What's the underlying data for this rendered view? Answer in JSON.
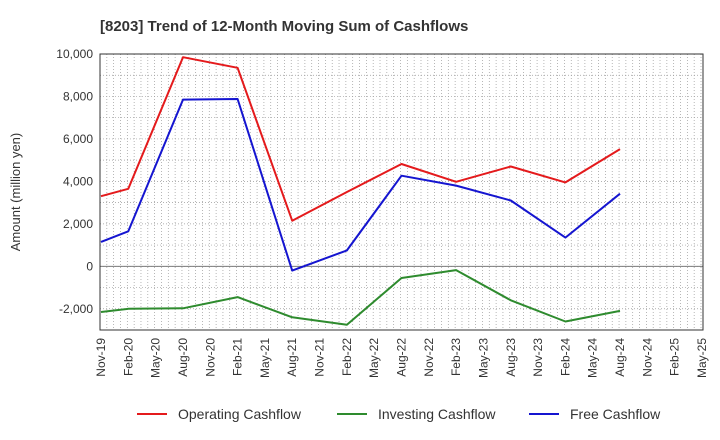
{
  "chart_data": {
    "type": "line",
    "title": "[8203]  Trend of 12-Month Moving Sum of Cashflows",
    "xlabel": "",
    "ylabel": "Amount (million yen)",
    "ylim": [
      -3000,
      10000
    ],
    "yticks": [
      -2000,
      0,
      2000,
      4000,
      6000,
      8000,
      10000
    ],
    "ytick_labels": [
      "-2,000",
      "0",
      "2,000",
      "4,000",
      "6,000",
      "8,000",
      "10,000"
    ],
    "categories": [
      "Nov-19",
      "Feb-20",
      "May-20",
      "Aug-20",
      "Nov-20",
      "Feb-21",
      "May-21",
      "Aug-21",
      "Nov-21",
      "Feb-22",
      "May-22",
      "Aug-22",
      "Nov-22",
      "Feb-23",
      "May-23",
      "Aug-23",
      "Nov-23",
      "Feb-24",
      "May-24",
      "Aug-24",
      "Nov-24",
      "Feb-25",
      "May-25"
    ],
    "grid": true,
    "legend_position": "bottom",
    "series": [
      {
        "name": "Operating Cashflow",
        "color": "#e41a1c",
        "values": [
          3300,
          3650,
          null,
          9850,
          null,
          9350,
          null,
          2150,
          null,
          3500,
          null,
          4820,
          null,
          3980,
          null,
          4700,
          null,
          3950,
          null,
          5520,
          null,
          null,
          null
        ]
      },
      {
        "name": "Investing Cashflow",
        "color": "#2e8b2e",
        "values": [
          -2150,
          -2000,
          null,
          -1980,
          null,
          -1450,
          null,
          -2400,
          null,
          -2750,
          null,
          -550,
          null,
          -180,
          null,
          -1600,
          null,
          -2600,
          null,
          -2100,
          null,
          null,
          null
        ]
      },
      {
        "name": "Free Cashflow",
        "color": "#1515d0",
        "values": [
          1150,
          1650,
          null,
          7850,
          null,
          7880,
          null,
          -200,
          null,
          750,
          null,
          4270,
          null,
          3800,
          null,
          3100,
          null,
          1350,
          null,
          3420,
          null,
          null,
          null
        ]
      }
    ]
  }
}
